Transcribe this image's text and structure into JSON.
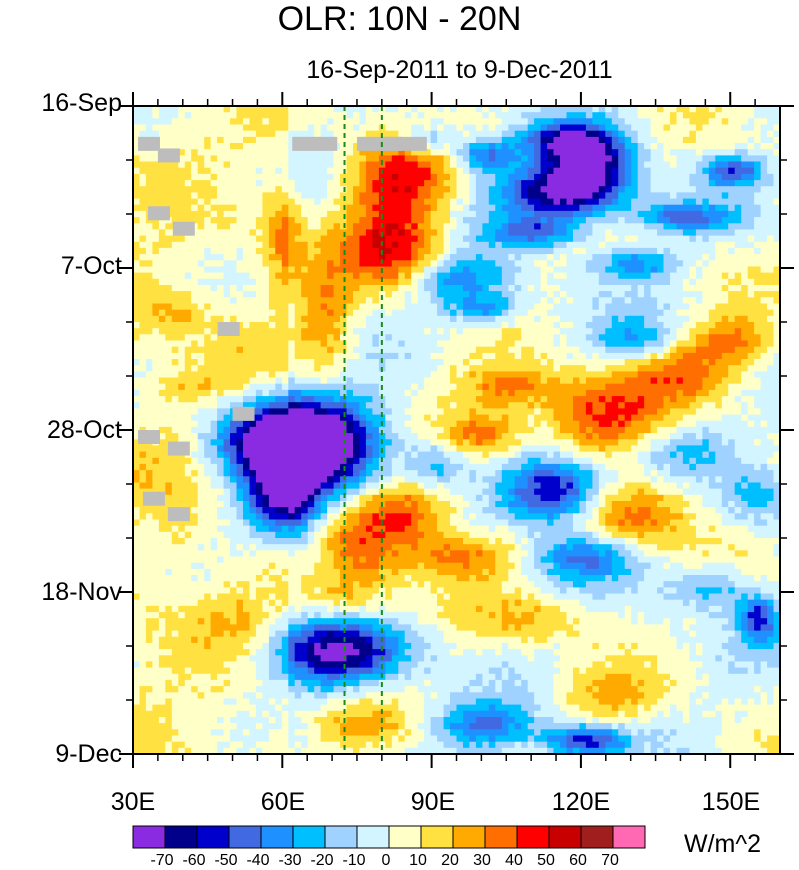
{
  "chart_data": {
    "type": "heatmap",
    "title": "OLR: 10N - 20N",
    "subtitle": "16-Sep-2011 to 9-Dec-2011",
    "x_ticks": [
      {
        "value": 30,
        "label": "30E"
      },
      {
        "value": 60,
        "label": "60E"
      },
      {
        "value": 90,
        "label": "90E"
      },
      {
        "value": 120,
        "label": "120E"
      },
      {
        "value": 150,
        "label": "150E"
      }
    ],
    "xlim": [
      30,
      160
    ],
    "y_ticks": [
      {
        "value": 0,
        "label": "16-Sep"
      },
      {
        "value": 21,
        "label": "7-Oct"
      },
      {
        "value": 42,
        "label": "28-Oct"
      },
      {
        "value": 63,
        "label": "18-Nov"
      },
      {
        "value": 84,
        "label": "9-Dec"
      }
    ],
    "ylim_days": [
      0,
      84
    ],
    "reference_lines_lon": [
      72.5,
      80
    ],
    "colorbar": {
      "units": "W/m^2",
      "labels": [
        "-70",
        "-60",
        "-50",
        "-40",
        "-30",
        "-20",
        "-10",
        "0",
        "10",
        "20",
        "30",
        "40",
        "50",
        "60",
        "70"
      ],
      "colors": [
        "#8a2be2",
        "#00008b",
        "#0000cd",
        "#4169e1",
        "#1e90ff",
        "#00bfff",
        "#a0d2ff",
        "#d2f5ff",
        "#ffffc8",
        "#ffe141",
        "#ffaa00",
        "#ff6e00",
        "#ff0000",
        "#c80000",
        "#a01e1e",
        "#ff69b4"
      ]
    },
    "anomaly_features": [
      {
        "lon": [
          63,
          73
        ],
        "day": [
          41,
          46
        ],
        "value": -75
      },
      {
        "lon": [
          53,
          63
        ],
        "day": [
          41,
          45
        ],
        "value": -75
      },
      {
        "lon": [
          57,
          62
        ],
        "day": [
          49,
          53
        ],
        "value": -72
      },
      {
        "lon": [
          65,
          76
        ],
        "day": [
          69,
          72
        ],
        "value": -72
      },
      {
        "lon": [
          110,
          118
        ],
        "day": [
          48,
          51
        ],
        "value": -72
      },
      {
        "lon": [
          110,
          120
        ],
        "day": [
          10,
          12
        ],
        "value": -72
      },
      {
        "lon": [
          118,
          124
        ],
        "day": [
          5,
          8
        ],
        "value": -72
      },
      {
        "lon": [
          78,
          86
        ],
        "day": [
          7,
          11
        ],
        "value": 45
      },
      {
        "lon": [
          78,
          86
        ],
        "day": [
          16,
          20
        ],
        "value": 48
      },
      {
        "lon": [
          80,
          88
        ],
        "day": [
          51,
          54
        ],
        "value": 45
      },
      {
        "lon": [
          118,
          128
        ],
        "day": [
          38,
          42
        ],
        "value": 42
      },
      {
        "lon": [
          125,
          135
        ],
        "day": [
          51,
          54
        ],
        "value": 38
      }
    ]
  }
}
